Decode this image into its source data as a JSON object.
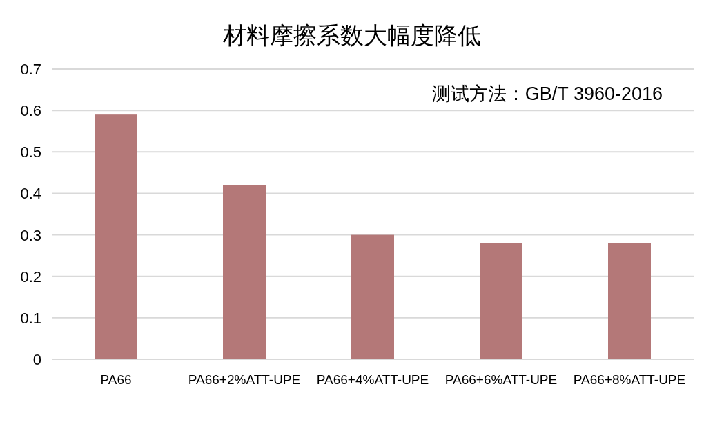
{
  "chart_data": {
    "type": "bar",
    "title": "材料摩擦系数大幅度降低",
    "categories": [
      "PA66",
      "PA66+2%ATT-UPE",
      "PA66+4%ATT-UPE",
      "PA66+6%ATT-UPE",
      "PA66+8%ATT-UPE"
    ],
    "values": [
      0.59,
      0.42,
      0.3,
      0.28,
      0.28
    ],
    "color": "#b47878",
    "ylim": [
      0,
      0.7
    ],
    "yticks": [
      0,
      0.1,
      0.2,
      0.3,
      0.4,
      0.5,
      0.6,
      0.7
    ],
    "grid": "y",
    "annotations": [
      "测试方法：GB/T 3960-2016"
    ]
  }
}
